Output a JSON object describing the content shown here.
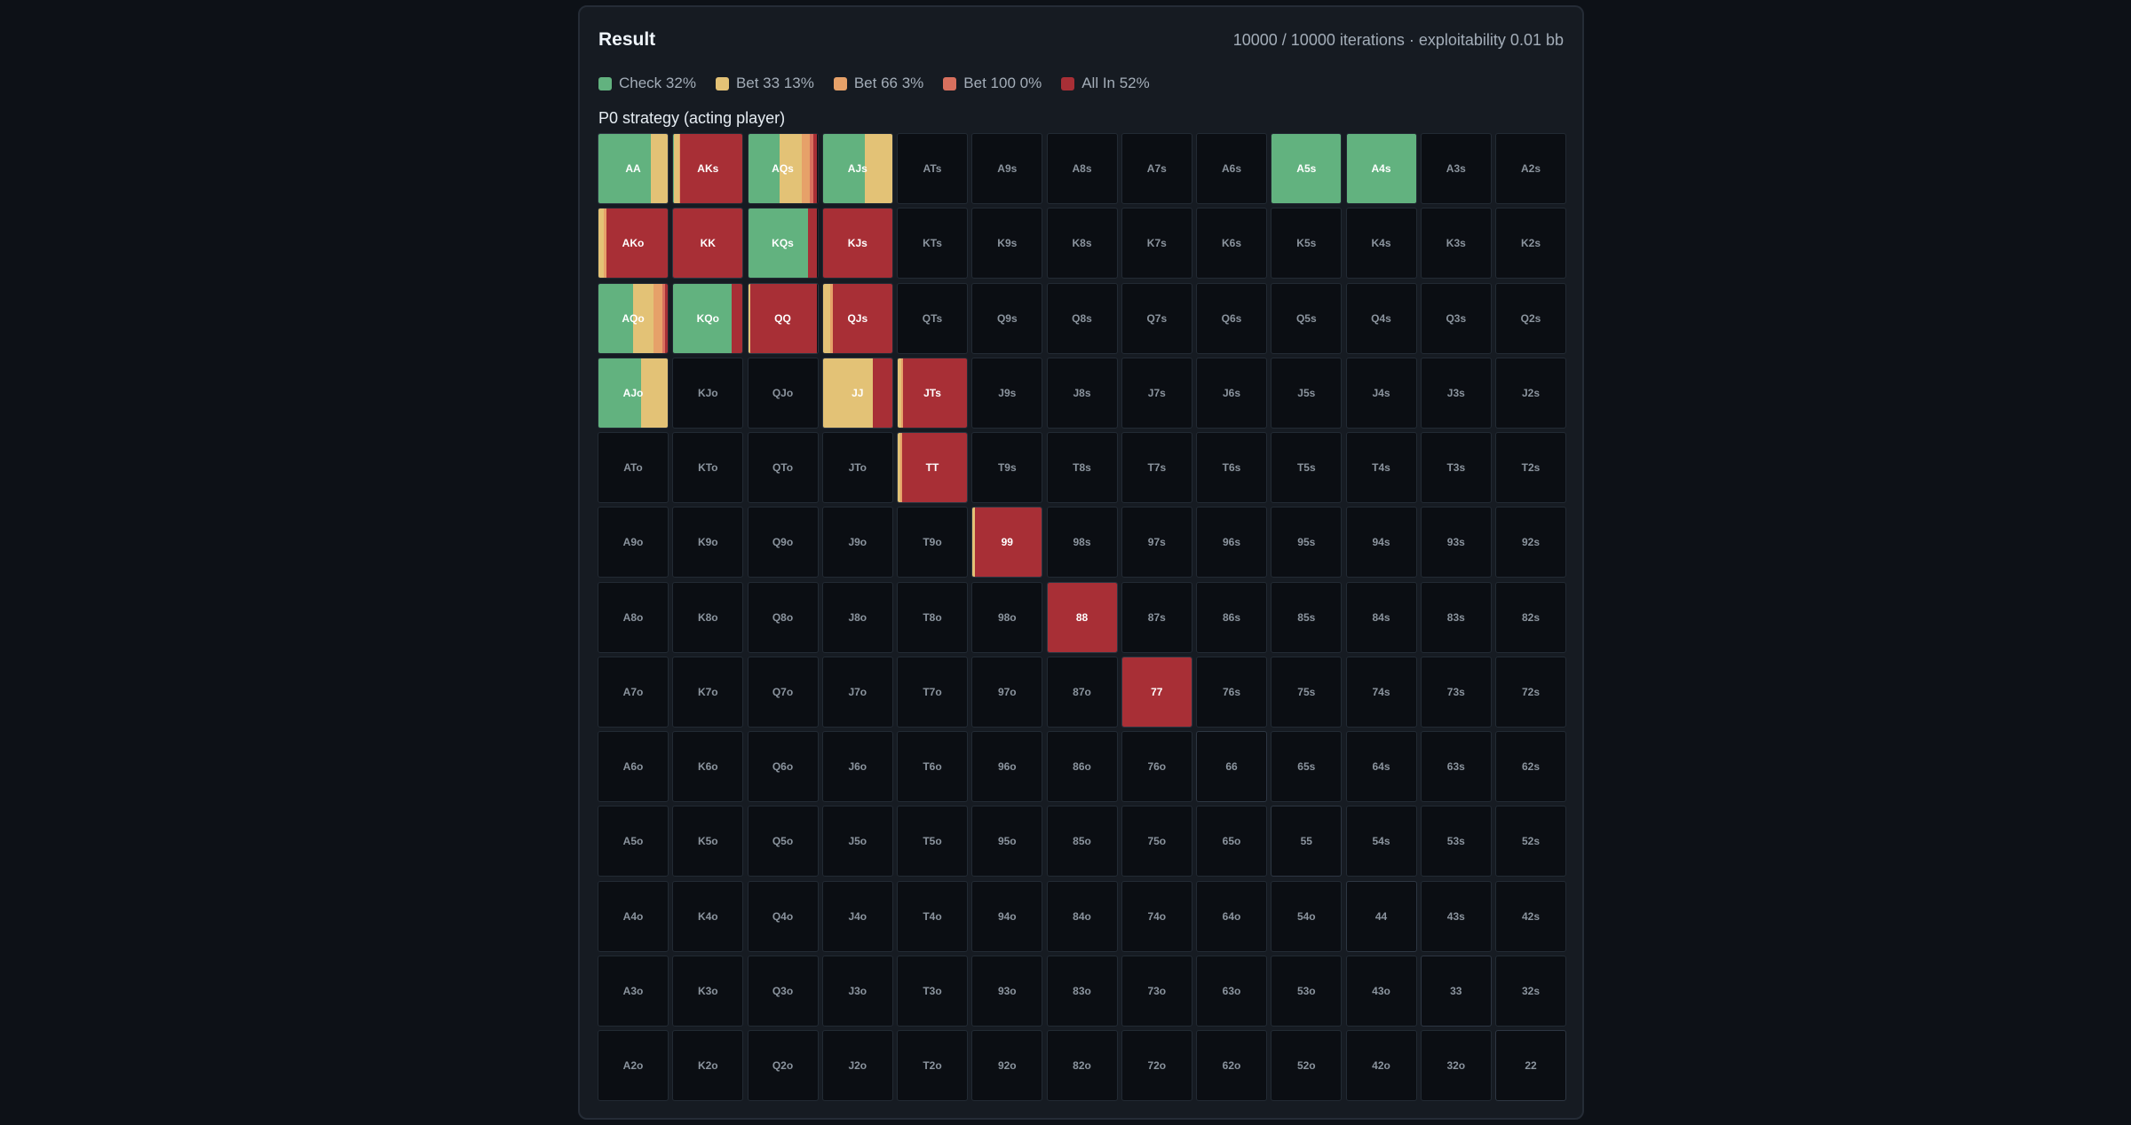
{
  "header": {
    "title": "Result",
    "status": "10000 / 10000 iterations · exploitability 0.01 bb"
  },
  "legend": [
    {
      "label": "Check 32%",
      "color": "#62b27f"
    },
    {
      "label": "Bet 33 13%",
      "color": "#e3c276"
    },
    {
      "label": "Bet 66 3%",
      "color": "#e6a169"
    },
    {
      "label": "Bet 100 0%",
      "color": "#d8705e"
    },
    {
      "label": "All In 52%",
      "color": "#a82f36"
    }
  ],
  "subtitle": "P0 strategy (acting player)",
  "grid": {
    "ranks": [
      "A",
      "K",
      "Q",
      "J",
      "T",
      "9",
      "8",
      "7",
      "6",
      "5",
      "4",
      "3",
      "2"
    ],
    "strategies": {
      "AA": [
        0.76,
        0.24,
        0,
        0,
        0
      ],
      "AKs": [
        0.01,
        0.07,
        0.02,
        0,
        0.9
      ],
      "AQs": [
        0.46,
        0.31,
        0.12,
        0.05,
        0.06
      ],
      "AJs": [
        0.6,
        0.4,
        0,
        0,
        0
      ],
      "A5s": [
        1,
        0,
        0,
        0,
        0
      ],
      "A4s": [
        1,
        0,
        0,
        0,
        0
      ],
      "AKo": [
        0,
        0.08,
        0.03,
        0,
        0.89
      ],
      "KK": [
        0,
        0,
        0,
        0,
        1
      ],
      "KQs": [
        0.86,
        0,
        0,
        0,
        0.14
      ],
      "KJs": [
        0,
        0,
        0,
        0,
        1
      ],
      "AQo": [
        0.5,
        0.3,
        0.12,
        0.04,
        0.04
      ],
      "KQo": [
        0.84,
        0,
        0,
        0,
        0.16
      ],
      "QQ": [
        0,
        0.03,
        0,
        0,
        0.97
      ],
      "QJs": [
        0,
        0.1,
        0.04,
        0,
        0.86
      ],
      "AJo": [
        0.61,
        0.39,
        0,
        0,
        0
      ],
      "JJ": [
        0,
        0.72,
        0,
        0,
        0.28
      ],
      "JTs": [
        0,
        0.05,
        0.03,
        0,
        0.92
      ],
      "TT": [
        0,
        0.04,
        0.02,
        0,
        0.94
      ],
      "99": [
        0,
        0.04,
        0,
        0,
        0.96
      ],
      "88": [
        0,
        0,
        0,
        0,
        1
      ],
      "77": [
        0,
        0,
        0,
        0,
        1
      ]
    }
  }
}
